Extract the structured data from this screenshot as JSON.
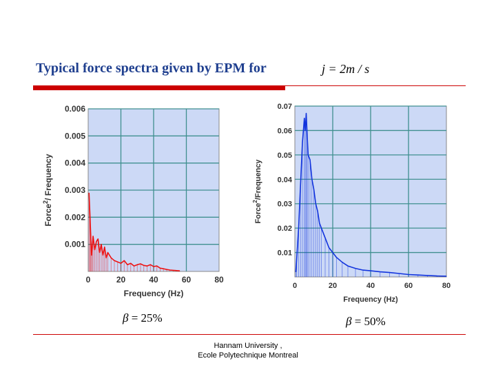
{
  "slide": {
    "title": "Typical force spectra given by EPM for",
    "formula": "j = 2m / s",
    "footer_line1": "Hannam University ,",
    "footer_line2": "Ecole Polytechnique Montreal"
  },
  "colors": {
    "title": "#1f3f8f",
    "accent": "#cc0000",
    "plot_bg": "#ccd9f6",
    "grid": "#3f8f8f"
  },
  "chart_data": [
    {
      "type": "line",
      "title": "",
      "caption_symbol": "β",
      "caption_value": "= 25%",
      "xlabel": "Frequency (Hz)",
      "ylabel_prefix": "Force",
      "ylabel_sup": "2",
      "ylabel_suffix": "/ Frequency",
      "xlim": [
        0,
        80
      ],
      "ylim": [
        0,
        0.006
      ],
      "xticks": [
        "0",
        "20",
        "40",
        "60",
        "80"
      ],
      "yticks": [
        "0.001",
        "0.002",
        "0.003",
        "0.004",
        "0.005",
        "0.006"
      ],
      "color": "#ee1111",
      "series": [
        {
          "name": "β = 25%",
          "x": [
            0.5,
            1,
            1.5,
            2,
            2.5,
            3,
            4,
            5,
            6,
            7,
            8,
            9,
            10,
            11,
            12,
            14,
            16,
            18,
            20,
            22,
            24,
            26,
            28,
            30,
            32,
            34,
            36,
            38,
            40,
            42,
            44,
            46,
            48,
            50,
            52,
            54,
            56
          ],
          "y": [
            0.0029,
            0.0022,
            0.0014,
            0.0006,
            0.0009,
            0.0013,
            0.0008,
            0.0011,
            0.0012,
            0.0007,
            0.001,
            0.0006,
            0.0009,
            0.0005,
            0.0007,
            0.0005,
            0.0004,
            0.00035,
            0.0003,
            0.0004,
            0.00025,
            0.0003,
            0.0002,
            0.00025,
            0.00028,
            0.00022,
            0.0002,
            0.00025,
            0.00018,
            0.0002,
            0.00012,
            0.0001,
            7e-05,
            5e-05,
            4e-05,
            3e-05,
            2e-05
          ]
        }
      ]
    },
    {
      "type": "line",
      "title": "",
      "caption_symbol": "β",
      "caption_value": "= 50%",
      "xlabel": "Frequency (Hz)",
      "ylabel_prefix": "Force",
      "ylabel_sup": "2",
      "ylabel_suffix": "/Frequency",
      "xlim": [
        0,
        80
      ],
      "ylim": [
        0,
        0.07
      ],
      "xticks": [
        "0",
        "20",
        "40",
        "60",
        "80"
      ],
      "yticks": [
        "0.01",
        "0.02",
        "0.03",
        "0.04",
        "0.05",
        "0.06",
        "0.07"
      ],
      "color": "#1133dd",
      "series": [
        {
          "name": "β = 50%",
          "x": [
            0.5,
            1,
            2,
            3,
            4,
            5,
            5.5,
            6,
            6.5,
            7,
            8,
            9,
            10,
            11,
            12,
            13,
            14,
            16,
            18,
            20,
            22,
            25,
            28,
            32,
            36,
            40,
            45,
            50,
            55,
            60,
            65,
            70,
            75,
            80
          ],
          "y": [
            0.002,
            0.008,
            0.02,
            0.038,
            0.055,
            0.065,
            0.06,
            0.067,
            0.058,
            0.05,
            0.048,
            0.04,
            0.036,
            0.03,
            0.027,
            0.022,
            0.02,
            0.016,
            0.012,
            0.01,
            0.008,
            0.006,
            0.0045,
            0.0035,
            0.0028,
            0.0025,
            0.0021,
            0.0018,
            0.0014,
            0.001,
            0.0008,
            0.0006,
            0.0004,
            0.0003
          ]
        }
      ]
    }
  ]
}
